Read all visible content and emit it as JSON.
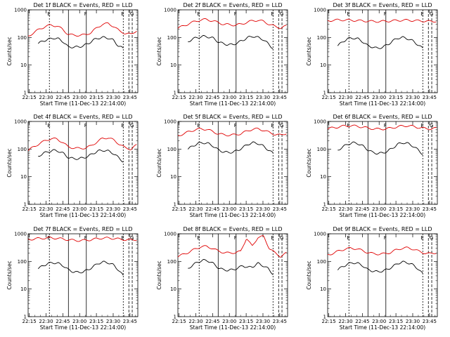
{
  "figure": {
    "colors": {
      "events": "#000000",
      "lld": "#e00000",
      "background": "#ffffff"
    }
  },
  "chart_data": [
    {
      "type": "line",
      "title": "Det 1f BLACK = Events, RED = LLD",
      "xlabel": "Start Time (11-Dec-13 22:14:00)",
      "ylabel": "Counts/sec",
      "x_ticks": [
        "22:15",
        "22:30",
        "22:45",
        "23:00",
        "23:15",
        "23:30",
        "23:45"
      ],
      "y_ticks": [
        "1",
        "10",
        "100",
        "1000"
      ],
      "y_scale": "log",
      "ylim": [
        1,
        1000
      ],
      "markers": [
        "E",
        "F",
        "E",
        "G"
      ],
      "series": [
        {
          "name": "Events",
          "color": "#000000",
          "x_start": "22:23",
          "x_end": "23:39",
          "values": [
            60,
            75,
            85,
            95,
            90,
            70,
            45,
            45,
            45,
            50,
            60,
            80,
            95,
            100,
            95,
            80,
            50,
            40
          ]
        },
        {
          "name": "LLD",
          "color": "#e00000",
          "x_start": "22:14",
          "x_end": "23:51",
          "values": [
            110,
            150,
            200,
            250,
            280,
            260,
            200,
            130,
            120,
            120,
            125,
            150,
            220,
            300,
            320,
            250,
            170,
            140,
            130,
            180
          ]
        }
      ]
    },
    {
      "type": "line",
      "title": "Det 2f BLACK = Events, RED = LLD",
      "xlabel": "Start Time (11-Dec-13 22:14:00)",
      "ylabel": "Counts/sec",
      "x_ticks": [
        "22:15",
        "22:30",
        "22:45",
        "23:00",
        "23:15",
        "23:30",
        "23:45"
      ],
      "y_ticks": [
        "1",
        "10",
        "100",
        "1000"
      ],
      "y_scale": "log",
      "ylim": [
        1,
        1000
      ],
      "markers": [
        "E",
        "F",
        "E",
        "G"
      ],
      "series": [
        {
          "name": "Events",
          "color": "#000000",
          "x_start": "22:23",
          "x_end": "23:39",
          "values": [
            70,
            90,
            100,
            110,
            105,
            95,
            70,
            60,
            55,
            55,
            65,
            80,
            100,
            110,
            100,
            85,
            60,
            40
          ]
        },
        {
          "name": "LLD",
          "color": "#e00000",
          "x_start": "22:14",
          "x_end": "23:51",
          "values": [
            220,
            260,
            320,
            380,
            430,
            450,
            400,
            350,
            300,
            290,
            280,
            300,
            350,
            400,
            420,
            380,
            300,
            250,
            220,
            260
          ]
        }
      ]
    },
    {
      "type": "line",
      "title": "Det 3f BLACK = Events, RED = LLD",
      "xlabel": "Start Time (11-Dec-13 22:14:00)",
      "ylabel": "Counts/sec",
      "x_ticks": [
        "22:15",
        "22:30",
        "22:45",
        "23:00",
        "23:15",
        "23:30",
        "23:45"
      ],
      "y_ticks": [
        "1",
        "10",
        "100",
        "1000"
      ],
      "y_scale": "log",
      "ylim": [
        1,
        1000
      ],
      "markers": [
        "E",
        "F",
        "E",
        "G"
      ],
      "series": [
        {
          "name": "Events",
          "color": "#000000",
          "x_start": "22:23",
          "x_end": "23:39",
          "values": [
            50,
            70,
            90,
            95,
            90,
            70,
            50,
            45,
            40,
            45,
            55,
            75,
            95,
            100,
            90,
            75,
            55,
            40
          ]
        },
        {
          "name": "LLD",
          "color": "#e00000",
          "x_start": "22:14",
          "x_end": "23:51",
          "values": [
            400,
            420,
            430,
            430,
            420,
            410,
            400,
            390,
            380,
            380,
            385,
            395,
            410,
            420,
            420,
            410,
            400,
            390,
            380,
            390
          ]
        }
      ]
    },
    {
      "type": "line",
      "title": "Det 4f BLACK = Events, RED = LLD",
      "xlabel": "Start Time (11-Dec-13 22:14:00)",
      "ylabel": "Counts/sec",
      "x_ticks": [
        "22:15",
        "22:30",
        "22:45",
        "23:00",
        "23:15",
        "23:30",
        "23:45"
      ],
      "y_ticks": [
        "1",
        "10",
        "100",
        "1000"
      ],
      "y_scale": "log",
      "ylim": [
        1,
        1000
      ],
      "markers": [
        "E",
        "F",
        "E",
        "G"
      ],
      "series": [
        {
          "name": "Events",
          "color": "#000000",
          "x_start": "22:23",
          "x_end": "23:39",
          "values": [
            55,
            70,
            80,
            90,
            85,
            70,
            50,
            45,
            45,
            48,
            55,
            70,
            85,
            90,
            85,
            70,
            50,
            35
          ]
        },
        {
          "name": "LLD",
          "color": "#e00000",
          "x_start": "22:14",
          "x_end": "23:51",
          "values": [
            90,
            120,
            160,
            200,
            240,
            230,
            180,
            120,
            110,
            105,
            110,
            130,
            180,
            240,
            260,
            210,
            150,
            110,
            100,
            140
          ]
        }
      ]
    },
    {
      "type": "line",
      "title": "Det 5f BLACK = Events, RED = LLD",
      "xlabel": "Start Time (11-Dec-13 22:14:00)",
      "ylabel": "Counts/sec",
      "x_ticks": [
        "22:15",
        "22:30",
        "22:45",
        "23:00",
        "23:15",
        "23:30",
        "23:45"
      ],
      "y_ticks": [
        "1",
        "10",
        "100",
        "1000"
      ],
      "y_scale": "log",
      "ylim": [
        1,
        1000
      ],
      "markers": [
        "E",
        "F",
        "E",
        "G"
      ],
      "series": [
        {
          "name": "Events",
          "color": "#000000",
          "x_start": "22:23",
          "x_end": "23:39",
          "values": [
            100,
            130,
            160,
            170,
            160,
            130,
            95,
            80,
            75,
            78,
            90,
            115,
            150,
            170,
            160,
            130,
            95,
            70
          ]
        },
        {
          "name": "LLD",
          "color": "#e00000",
          "x_start": "22:14",
          "x_end": "23:51",
          "values": [
            300,
            360,
            430,
            500,
            540,
            520,
            440,
            360,
            330,
            320,
            330,
            360,
            440,
            520,
            540,
            480,
            400,
            340,
            320,
            380
          ]
        }
      ]
    },
    {
      "type": "line",
      "title": "Det 6f BLACK = Events, RED = LLD",
      "xlabel": "Start Time (11-Dec-13 22:14:00)",
      "ylabel": "Counts/sec",
      "x_ticks": [
        "22:15",
        "22:30",
        "22:45",
        "23:00",
        "23:15",
        "23:30",
        "23:45"
      ],
      "y_ticks": [
        "1",
        "10",
        "100",
        "1000"
      ],
      "y_scale": "log",
      "ylim": [
        1,
        1000
      ],
      "markers": [
        "E",
        "F",
        "E",
        "G"
      ],
      "series": [
        {
          "name": "Events",
          "color": "#000000",
          "x_start": "22:23",
          "x_end": "23:39",
          "values": [
            90,
            120,
            150,
            170,
            160,
            130,
            95,
            75,
            70,
            72,
            85,
            110,
            150,
            170,
            160,
            130,
            95,
            65
          ]
        },
        {
          "name": "LLD",
          "color": "#e00000",
          "x_start": "22:14",
          "x_end": "23:51",
          "values": [
            550,
            590,
            640,
            690,
            700,
            680,
            630,
            580,
            540,
            530,
            540,
            570,
            630,
            680,
            700,
            660,
            600,
            560,
            540,
            570
          ]
        }
      ]
    },
    {
      "type": "line",
      "title": "Det 7f BLACK = Events, RED = LLD",
      "xlabel": "Start Time (11-Dec-13 22:14:00)",
      "ylabel": "Counts/sec",
      "x_ticks": [
        "22:15",
        "22:30",
        "22:45",
        "23:00",
        "23:15",
        "23:30",
        "23:45"
      ],
      "y_ticks": [
        "1",
        "10",
        "100",
        "1000"
      ],
      "y_scale": "log",
      "ylim": [
        1,
        1000
      ],
      "markers": [
        "E",
        "F",
        "E",
        "G"
      ],
      "series": [
        {
          "name": "Events",
          "color": "#000000",
          "x_start": "22:23",
          "x_end": "23:39",
          "values": [
            55,
            70,
            85,
            90,
            85,
            70,
            50,
            42,
            40,
            42,
            50,
            65,
            85,
            95,
            90,
            75,
            50,
            30
          ]
        },
        {
          "name": "LLD",
          "color": "#e00000",
          "x_start": "22:14",
          "x_end": "23:51",
          "values": [
            620,
            650,
            680,
            700,
            710,
            690,
            650,
            610,
            580,
            570,
            580,
            610,
            660,
            700,
            700,
            680,
            640,
            610,
            600,
            620
          ]
        }
      ]
    },
    {
      "type": "line",
      "title": "Det 8f BLACK = Events, RED = LLD",
      "xlabel": "Start Time (11-Dec-13 22:14:00)",
      "ylabel": "Counts/sec",
      "x_ticks": [
        "22:15",
        "22:30",
        "22:45",
        "23:00",
        "23:15",
        "23:30",
        "23:45"
      ],
      "y_ticks": [
        "1",
        "10",
        "100",
        "1000"
      ],
      "y_scale": "log",
      "ylim": [
        1,
        1000
      ],
      "markers": [
        "E",
        "F",
        "E",
        "G"
      ],
      "series": [
        {
          "name": "Events",
          "color": "#000000",
          "x_start": "22:23",
          "x_end": "23:39",
          "values": [
            55,
            75,
            95,
            110,
            105,
            85,
            60,
            50,
            48,
            50,
            58,
            70,
            60,
            65,
            85,
            70,
            55,
            35
          ]
        },
        {
          "name": "LLD",
          "color": "#e00000",
          "x_start": "22:14",
          "x_end": "23:51",
          "values": [
            150,
            180,
            220,
            280,
            340,
            350,
            300,
            240,
            210,
            200,
            210,
            230,
            700,
            350,
            750,
            800,
            300,
            200,
            150,
            200
          ]
        }
      ]
    },
    {
      "type": "line",
      "title": "Det 9f BLACK = Events, RED = LLD",
      "xlabel": "Start Time (11-Dec-13 22:14:00)",
      "ylabel": "Counts/sec",
      "x_ticks": [
        "22:15",
        "22:30",
        "22:45",
        "23:00",
        "23:15",
        "23:30",
        "23:45"
      ],
      "y_ticks": [
        "1",
        "10",
        "100",
        "1000"
      ],
      "y_scale": "log",
      "ylim": [
        1,
        1000
      ],
      "markers": [
        "E",
        "F",
        "E",
        "G"
      ],
      "series": [
        {
          "name": "Events",
          "color": "#000000",
          "x_start": "22:23",
          "x_end": "23:39",
          "values": [
            50,
            65,
            80,
            90,
            85,
            70,
            50,
            45,
            42,
            45,
            52,
            65,
            85,
            95,
            90,
            75,
            55,
            35
          ]
        },
        {
          "name": "LLD",
          "color": "#e00000",
          "x_start": "22:14",
          "x_end": "23:51",
          "values": [
            170,
            200,
            240,
            280,
            300,
            290,
            250,
            210,
            190,
            185,
            190,
            210,
            260,
            300,
            310,
            280,
            230,
            200,
            190,
            210
          ]
        }
      ]
    }
  ]
}
